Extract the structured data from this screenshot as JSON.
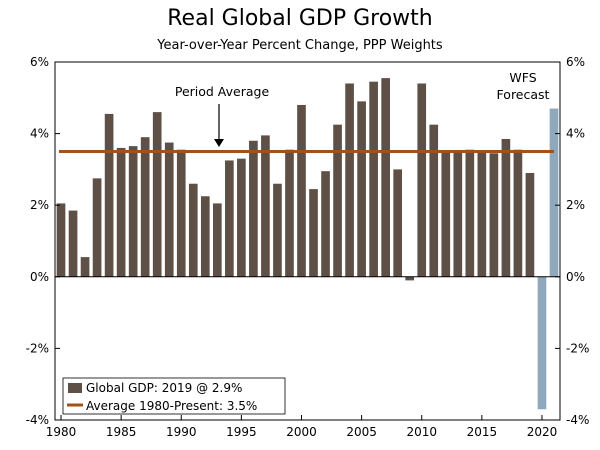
{
  "chart_data": {
    "type": "bar",
    "title": "Real Global GDP Growth",
    "subtitle": "Year-over-Year Percent Change, PPP Weights",
    "xlabel": "",
    "ylabel": "",
    "ylim": [
      -4,
      6
    ],
    "yticks": [
      -4,
      -2,
      0,
      2,
      4,
      6
    ],
    "ytick_labels": [
      "-4%",
      "-2%",
      "0%",
      "2%",
      "4%",
      "6%"
    ],
    "xlim": [
      1980,
      2021
    ],
    "xticks": [
      1980,
      1985,
      1990,
      1995,
      2000,
      2005,
      2010,
      2015,
      2020
    ],
    "xtick_labels": [
      "1980",
      "1985",
      "1990",
      "1995",
      "2000",
      "2005",
      "2010",
      "2015",
      "2020"
    ],
    "series": [
      {
        "name": "Global GDP: 2019 @ 2.9%",
        "color": "#5e5046",
        "years": [
          1980,
          1981,
          1982,
          1983,
          1984,
          1985,
          1986,
          1987,
          1988,
          1989,
          1990,
          1991,
          1992,
          1993,
          1994,
          1995,
          1996,
          1997,
          1998,
          1999,
          2000,
          2001,
          2002,
          2003,
          2004,
          2005,
          2006,
          2007,
          2008,
          2009,
          2010,
          2011,
          2012,
          2013,
          2014,
          2015,
          2016,
          2017,
          2018,
          2019
        ],
        "values": [
          2.05,
          1.85,
          0.55,
          2.75,
          4.55,
          3.6,
          3.65,
          3.9,
          4.6,
          3.75,
          3.55,
          2.6,
          2.25,
          2.05,
          3.25,
          3.3,
          3.8,
          3.95,
          2.6,
          3.55,
          4.8,
          2.45,
          2.95,
          4.25,
          5.4,
          4.9,
          5.45,
          5.55,
          3.0,
          -0.1,
          5.4,
          4.25,
          3.5,
          3.5,
          3.55,
          3.5,
          3.45,
          3.85,
          3.55,
          2.9
        ]
      },
      {
        "name": "WFS Forecast",
        "color": "#8fa8bb",
        "years": [
          2020,
          2021
        ],
        "values": [
          -3.7,
          4.7
        ]
      }
    ],
    "average": {
      "name": "Average 1980-Present: 3.5%",
      "value": 3.5,
      "color": "#a0521d"
    },
    "annotations": {
      "period_average": "Period Average",
      "forecast_line1": "WFS",
      "forecast_line2": "Forecast"
    },
    "legend": {
      "position": "bottom-left",
      "entries": [
        "Global GDP: 2019 @ 2.9%",
        "Average 1980-Present: 3.5%"
      ]
    }
  }
}
